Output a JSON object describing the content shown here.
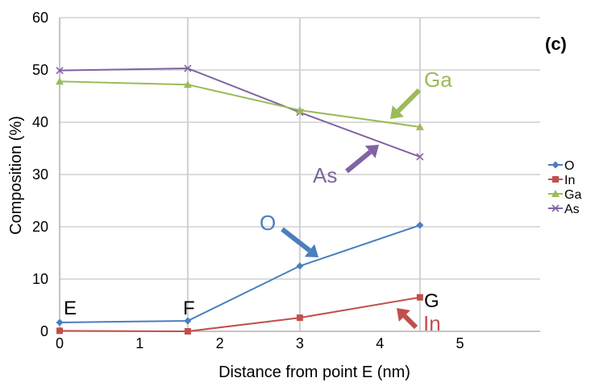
{
  "chart_data": {
    "type": "line",
    "title": "",
    "xlabel": "Distance from point E (nm)",
    "ylabel": "Composition (%)",
    "xlim": [
      0,
      6
    ],
    "ylim": [
      0,
      60
    ],
    "x_ticks": [
      "0",
      "1",
      "2",
      "3",
      "4",
      "5"
    ],
    "y_ticks": [
      "0",
      "10",
      "20",
      "30",
      "40",
      "50",
      "60"
    ],
    "grid": "vertical lines at 1.6, 3 and 4.5 nm; horizontal lines every 10",
    "legend_position": "right",
    "panel_label": "(c)",
    "x": [
      0,
      1.6,
      3,
      4.5
    ],
    "point_labels": [
      "E",
      "F",
      "",
      "G"
    ],
    "series": [
      {
        "name": "O",
        "color": "#4a7ebf",
        "marker": "diamond",
        "values": [
          1.7,
          2.0,
          12.5,
          20.3
        ]
      },
      {
        "name": "In",
        "color": "#c0504d",
        "marker": "square",
        "values": [
          0.1,
          0.0,
          2.6,
          6.5
        ]
      },
      {
        "name": "Ga",
        "color": "#9bbb59",
        "marker": "triangle",
        "values": [
          47.8,
          47.2,
          42.3,
          39.1
        ]
      },
      {
        "name": "As",
        "color": "#8064a2",
        "marker": "x",
        "values": [
          49.9,
          50.3,
          41.9,
          33.4
        ]
      }
    ],
    "annotations": [
      {
        "text": "Ga",
        "color": "#9bbb59"
      },
      {
        "text": "As",
        "color": "#8064a2"
      },
      {
        "text": "O",
        "color": "#4a7ebf"
      },
      {
        "text": "In",
        "color": "#c0504d"
      }
    ]
  }
}
